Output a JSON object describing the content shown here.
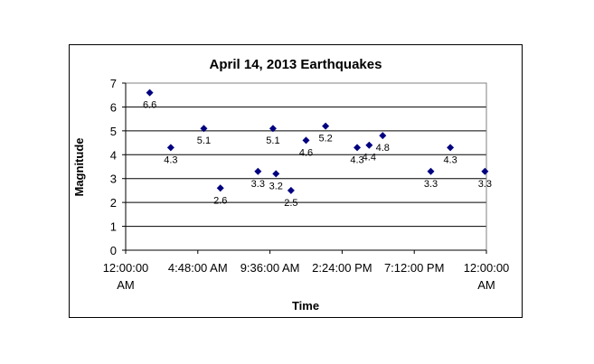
{
  "chart_data": {
    "type": "scatter",
    "title": "April 14, 2013 Earthquakes",
    "xlabel": "Time",
    "ylabel": "Magnitude",
    "ylim": [
      0,
      7
    ],
    "yticks": [
      0,
      1,
      2,
      3,
      4,
      5,
      6,
      7
    ],
    "xticks": [
      "12:00:00 AM",
      "4:48:00 AM",
      "9:36:00 AM",
      "2:24:00 PM",
      "7:12:00 PM",
      "12:00:00 AM"
    ],
    "grid": true,
    "legend": "none",
    "marker_color": "#000080",
    "points": [
      {
        "x_hours": 1.6,
        "y": 6.6,
        "label": "6.6"
      },
      {
        "x_hours": 3.0,
        "y": 4.3,
        "label": "4.3"
      },
      {
        "x_hours": 5.2,
        "y": 5.1,
        "label": "5.1"
      },
      {
        "x_hours": 6.3,
        "y": 2.6,
        "label": "2.6"
      },
      {
        "x_hours": 8.8,
        "y": 3.3,
        "label": "3.3"
      },
      {
        "x_hours": 9.8,
        "y": 5.1,
        "label": "5.1"
      },
      {
        "x_hours": 10.0,
        "y": 3.2,
        "label": "3.2"
      },
      {
        "x_hours": 11.0,
        "y": 2.5,
        "label": "2.5"
      },
      {
        "x_hours": 12.0,
        "y": 4.6,
        "label": "4.6"
      },
      {
        "x_hours": 13.3,
        "y": 5.2,
        "label": "5.2"
      },
      {
        "x_hours": 15.4,
        "y": 4.3,
        "label": "4.3"
      },
      {
        "x_hours": 16.2,
        "y": 4.4,
        "label": "4.4"
      },
      {
        "x_hours": 17.1,
        "y": 4.8,
        "label": "4.8"
      },
      {
        "x_hours": 20.3,
        "y": 3.3,
        "label": "3.3"
      },
      {
        "x_hours": 21.6,
        "y": 4.3,
        "label": "4.3"
      },
      {
        "x_hours": 23.9,
        "y": 3.3,
        "label": "3.3"
      }
    ]
  }
}
